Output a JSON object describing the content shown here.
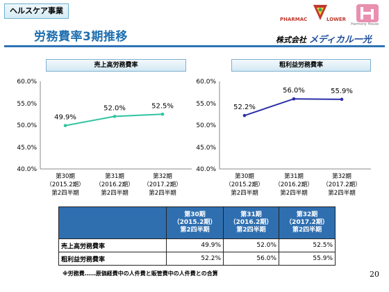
{
  "header": {
    "section_tag": "ヘルスケア事業",
    "title": "労務費率3期推移",
    "logo_pharmacy": "PHARMAC",
    "logo_flower": "LOWER",
    "logo_harmony": "Harmony House",
    "company_prefix": "株式会社",
    "company_brand": "メディカル一光"
  },
  "colors": {
    "left_line": "#2ec4a0",
    "right_line": "#2b2fa8",
    "accent": "#2e74b5",
    "table_header": "#2f6fb0"
  },
  "charts": [
    {
      "title": "売上高労務費率",
      "y_ticks": [
        "60.0%",
        "55.0%",
        "50.0%",
        "45.0%",
        "40.0%"
      ],
      "categories": [
        [
          "第30期",
          "（2015.2期）",
          "第2四半期"
        ],
        [
          "第31期",
          "（2016.2期）",
          "第2四半期"
        ],
        [
          "第32期",
          "（2017.2期）",
          "第2四半期"
        ]
      ],
      "labels": [
        "49.9%",
        "52.0%",
        "52.5%"
      ]
    },
    {
      "title": "粗利益労務費率",
      "y_ticks": [
        "60.0%",
        "55.0%",
        "50.0%",
        "45.0%",
        "40.0%"
      ],
      "categories": [
        [
          "第30期",
          "（2015.2期）",
          "第2四半期"
        ],
        [
          "第31期",
          "（2016.2期）",
          "第2四半期"
        ],
        [
          "第32期",
          "（2017.2期）",
          "第2四半期"
        ]
      ],
      "labels": [
        "52.2%",
        "56.0%",
        "55.9%"
      ]
    }
  ],
  "chart_data": [
    {
      "type": "line",
      "title": "売上高労務費率",
      "categories": [
        "第30期（2015.2期）第2四半期",
        "第31期（2016.2期）第2四半期",
        "第32期（2017.2期）第2四半期"
      ],
      "values": [
        49.9,
        52.0,
        52.5
      ],
      "ylim": [
        40,
        60
      ],
      "grid": false
    },
    {
      "type": "line",
      "title": "粗利益労務費率",
      "categories": [
        "第30期（2015.2期）第2四半期",
        "第31期（2016.2期）第2四半期",
        "第32期（2017.2期）第2四半期"
      ],
      "values": [
        52.2,
        56.0,
        55.9
      ],
      "ylim": [
        40,
        60
      ],
      "grid": false
    }
  ],
  "table": {
    "columns": [
      [
        "第30期",
        "（2015.2期）",
        "第2四半期"
      ],
      [
        "第31期",
        "（2016.2期）",
        "第2四半期"
      ],
      [
        "第32期",
        "（2017.2期）",
        "第2四半期"
      ]
    ],
    "rows": [
      {
        "label": "売上高労務費率",
        "values": [
          "49.9%",
          "52.0%",
          "52.5%"
        ]
      },
      {
        "label": "粗利益労務費率",
        "values": [
          "52.2%",
          "56.0%",
          "55.9%"
        ]
      }
    ]
  },
  "footer": {
    "note": "※労務費……原価経費中の人件費と販管費中の人件費との合算",
    "page_number": "20"
  }
}
